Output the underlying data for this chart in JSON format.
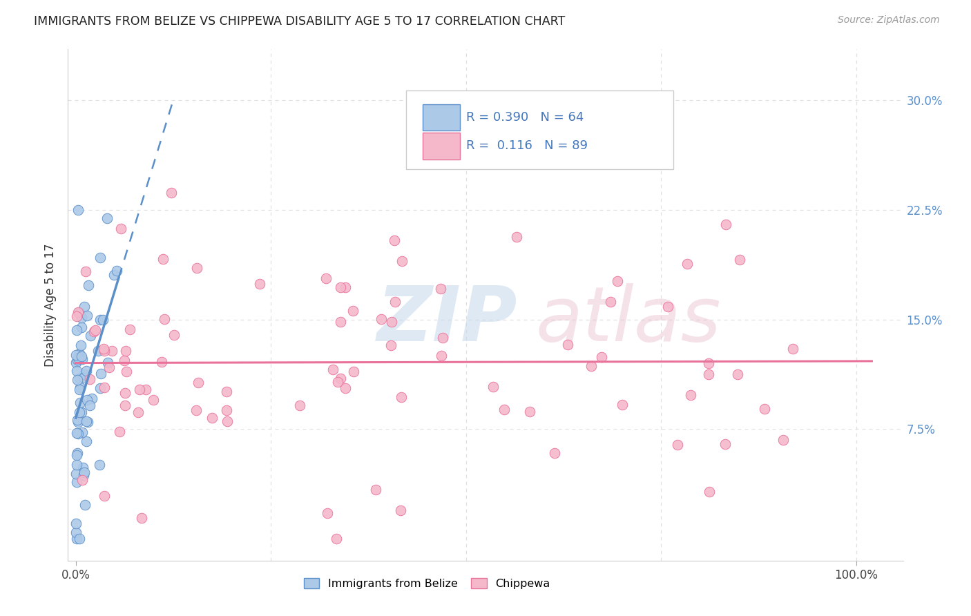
{
  "title": "IMMIGRANTS FROM BELIZE VS CHIPPEWA DISABILITY AGE 5 TO 17 CORRELATION CHART",
  "source": "Source: ZipAtlas.com",
  "ylabel": "Disability Age 5 to 17",
  "yticks": [
    "7.5%",
    "15.0%",
    "22.5%",
    "30.0%"
  ],
  "ytick_vals": [
    0.075,
    0.15,
    0.225,
    0.3
  ],
  "xtick_positions": [
    0.0,
    0.5,
    1.0
  ],
  "xtick_labels": [
    "0.0%",
    "",
    "100.0%"
  ],
  "xlim": [
    -0.01,
    1.06
  ],
  "ylim": [
    -0.015,
    0.335
  ],
  "legend_row1": "R = 0.390   N = 64",
  "legend_row2": "R =  0.116   N = 89",
  "color_belize_fill": "#adc9e8",
  "color_belize_edge": "#5b8fc9",
  "color_chippewa_fill": "#f5b8cb",
  "color_chippewa_edge": "#e8729a",
  "color_chippewa_line": "#e8729a",
  "color_belize_line": "#5b8fc9",
  "color_title": "#222222",
  "color_source": "#999999",
  "color_legend_text": "#4477bb",
  "color_grid": "#e0e0e0",
  "color_axis_labels": "#5b8fc9",
  "watermark_zip_color": "#c5d8ec",
  "watermark_atlas_color": "#e8bfcc",
  "legend_r1_color": "#4477bb",
  "legend_r2_color": "#4477bb",
  "legend_n1_color": "#4477bb",
  "legend_n2_color": "#4477bb",
  "belize_seed": 101,
  "chippewa_seed": 202
}
